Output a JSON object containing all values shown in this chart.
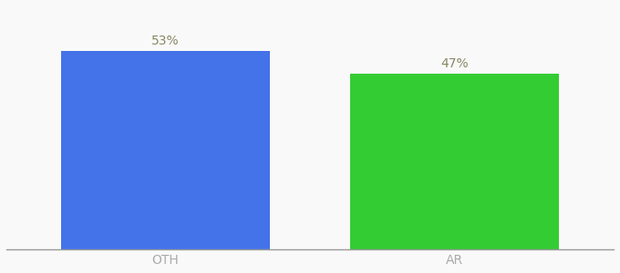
{
  "categories": [
    "OTH",
    "AR"
  ],
  "values": [
    53,
    47
  ],
  "bar_colors": [
    "#4472E8",
    "#33CC33"
  ],
  "labels": [
    "53%",
    "47%"
  ],
  "background_color": "#f9f9f9",
  "label_color": "#888866",
  "label_fontsize": 10,
  "tick_color": "#aaaaaa",
  "bar_width": 0.72,
  "ylim": [
    0,
    65
  ],
  "figsize": [
    6.8,
    3.0
  ],
  "dpi": 100
}
